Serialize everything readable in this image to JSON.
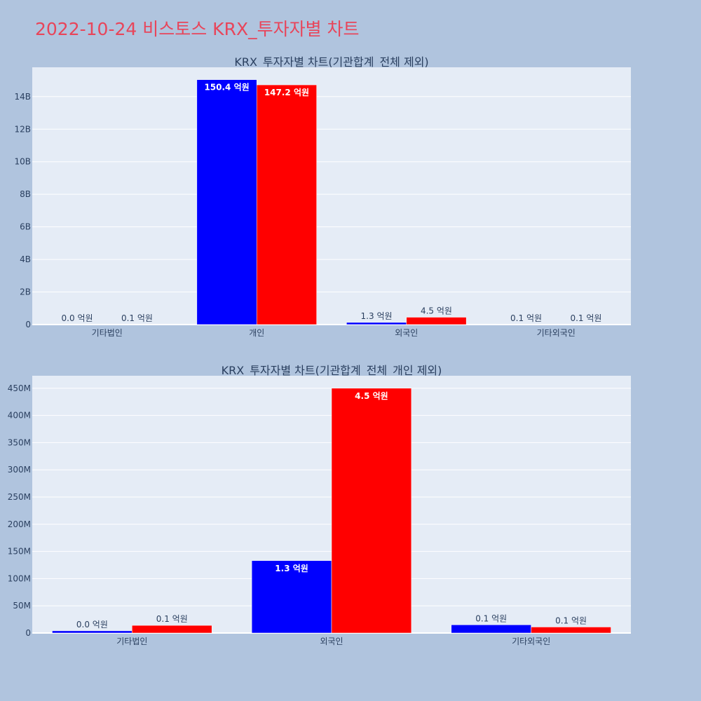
{
  "page_title": "2022-10-24 비스토스 KRX_투자자별 차트",
  "chart_data": [
    {
      "type": "bar",
      "title": "KRX_투자자별 차트(기관합계_전체 제외)",
      "categories": [
        "기타법인",
        "개인",
        "외국인",
        "기타외국인"
      ],
      "series": [
        {
          "color": "#0000ff",
          "values": [
            0,
            15040000000,
            130000000,
            10000000
          ],
          "labels": [
            "0.0 억원",
            "150.4 억원",
            "1.3 억원",
            "0.1 억원"
          ]
        },
        {
          "color": "#ff0000",
          "values": [
            10000000,
            14720000000,
            450000000,
            10000000
          ],
          "labels": [
            "0.1 억원",
            "147.2 억원",
            "4.5 억원",
            "0.1 억원"
          ]
        }
      ],
      "yticks": [
        0,
        2000000000,
        4000000000,
        6000000000,
        8000000000,
        10000000000,
        12000000000,
        14000000000
      ],
      "ytick_labels": [
        "0",
        "2B",
        "4B",
        "6B",
        "8B",
        "10B",
        "12B",
        "14B"
      ],
      "ylim": [
        0,
        15800000000
      ],
      "grid": true
    },
    {
      "type": "bar",
      "title": "KRX_투자자별 차트(기관합계_전체_개인 제외)",
      "categories": [
        "기타법인",
        "외국인",
        "기타외국인"
      ],
      "series": [
        {
          "color": "#0000ff",
          "values": [
            4000000,
            133000000,
            15000000
          ],
          "labels": [
            "0.0 억원",
            "1.3 억원",
            "0.1 억원"
          ]
        },
        {
          "color": "#ff0000",
          "values": [
            14000000,
            450000000,
            11000000
          ],
          "labels": [
            "0.1 억원",
            "4.5 억원",
            "0.1 억원"
          ]
        }
      ],
      "yticks": [
        0,
        50000000,
        100000000,
        150000000,
        200000000,
        250000000,
        300000000,
        350000000,
        400000000,
        450000000
      ],
      "ytick_labels": [
        "0",
        "50M",
        "100M",
        "150M",
        "200M",
        "250M",
        "300M",
        "350M",
        "400M",
        "450M"
      ],
      "ylim": [
        0,
        473000000
      ],
      "grid": true
    }
  ],
  "colors": {
    "background": "#b0c4de",
    "plot_bg": "#e5ecf6",
    "title": "#e8455a",
    "text": "#2a3f5f"
  }
}
